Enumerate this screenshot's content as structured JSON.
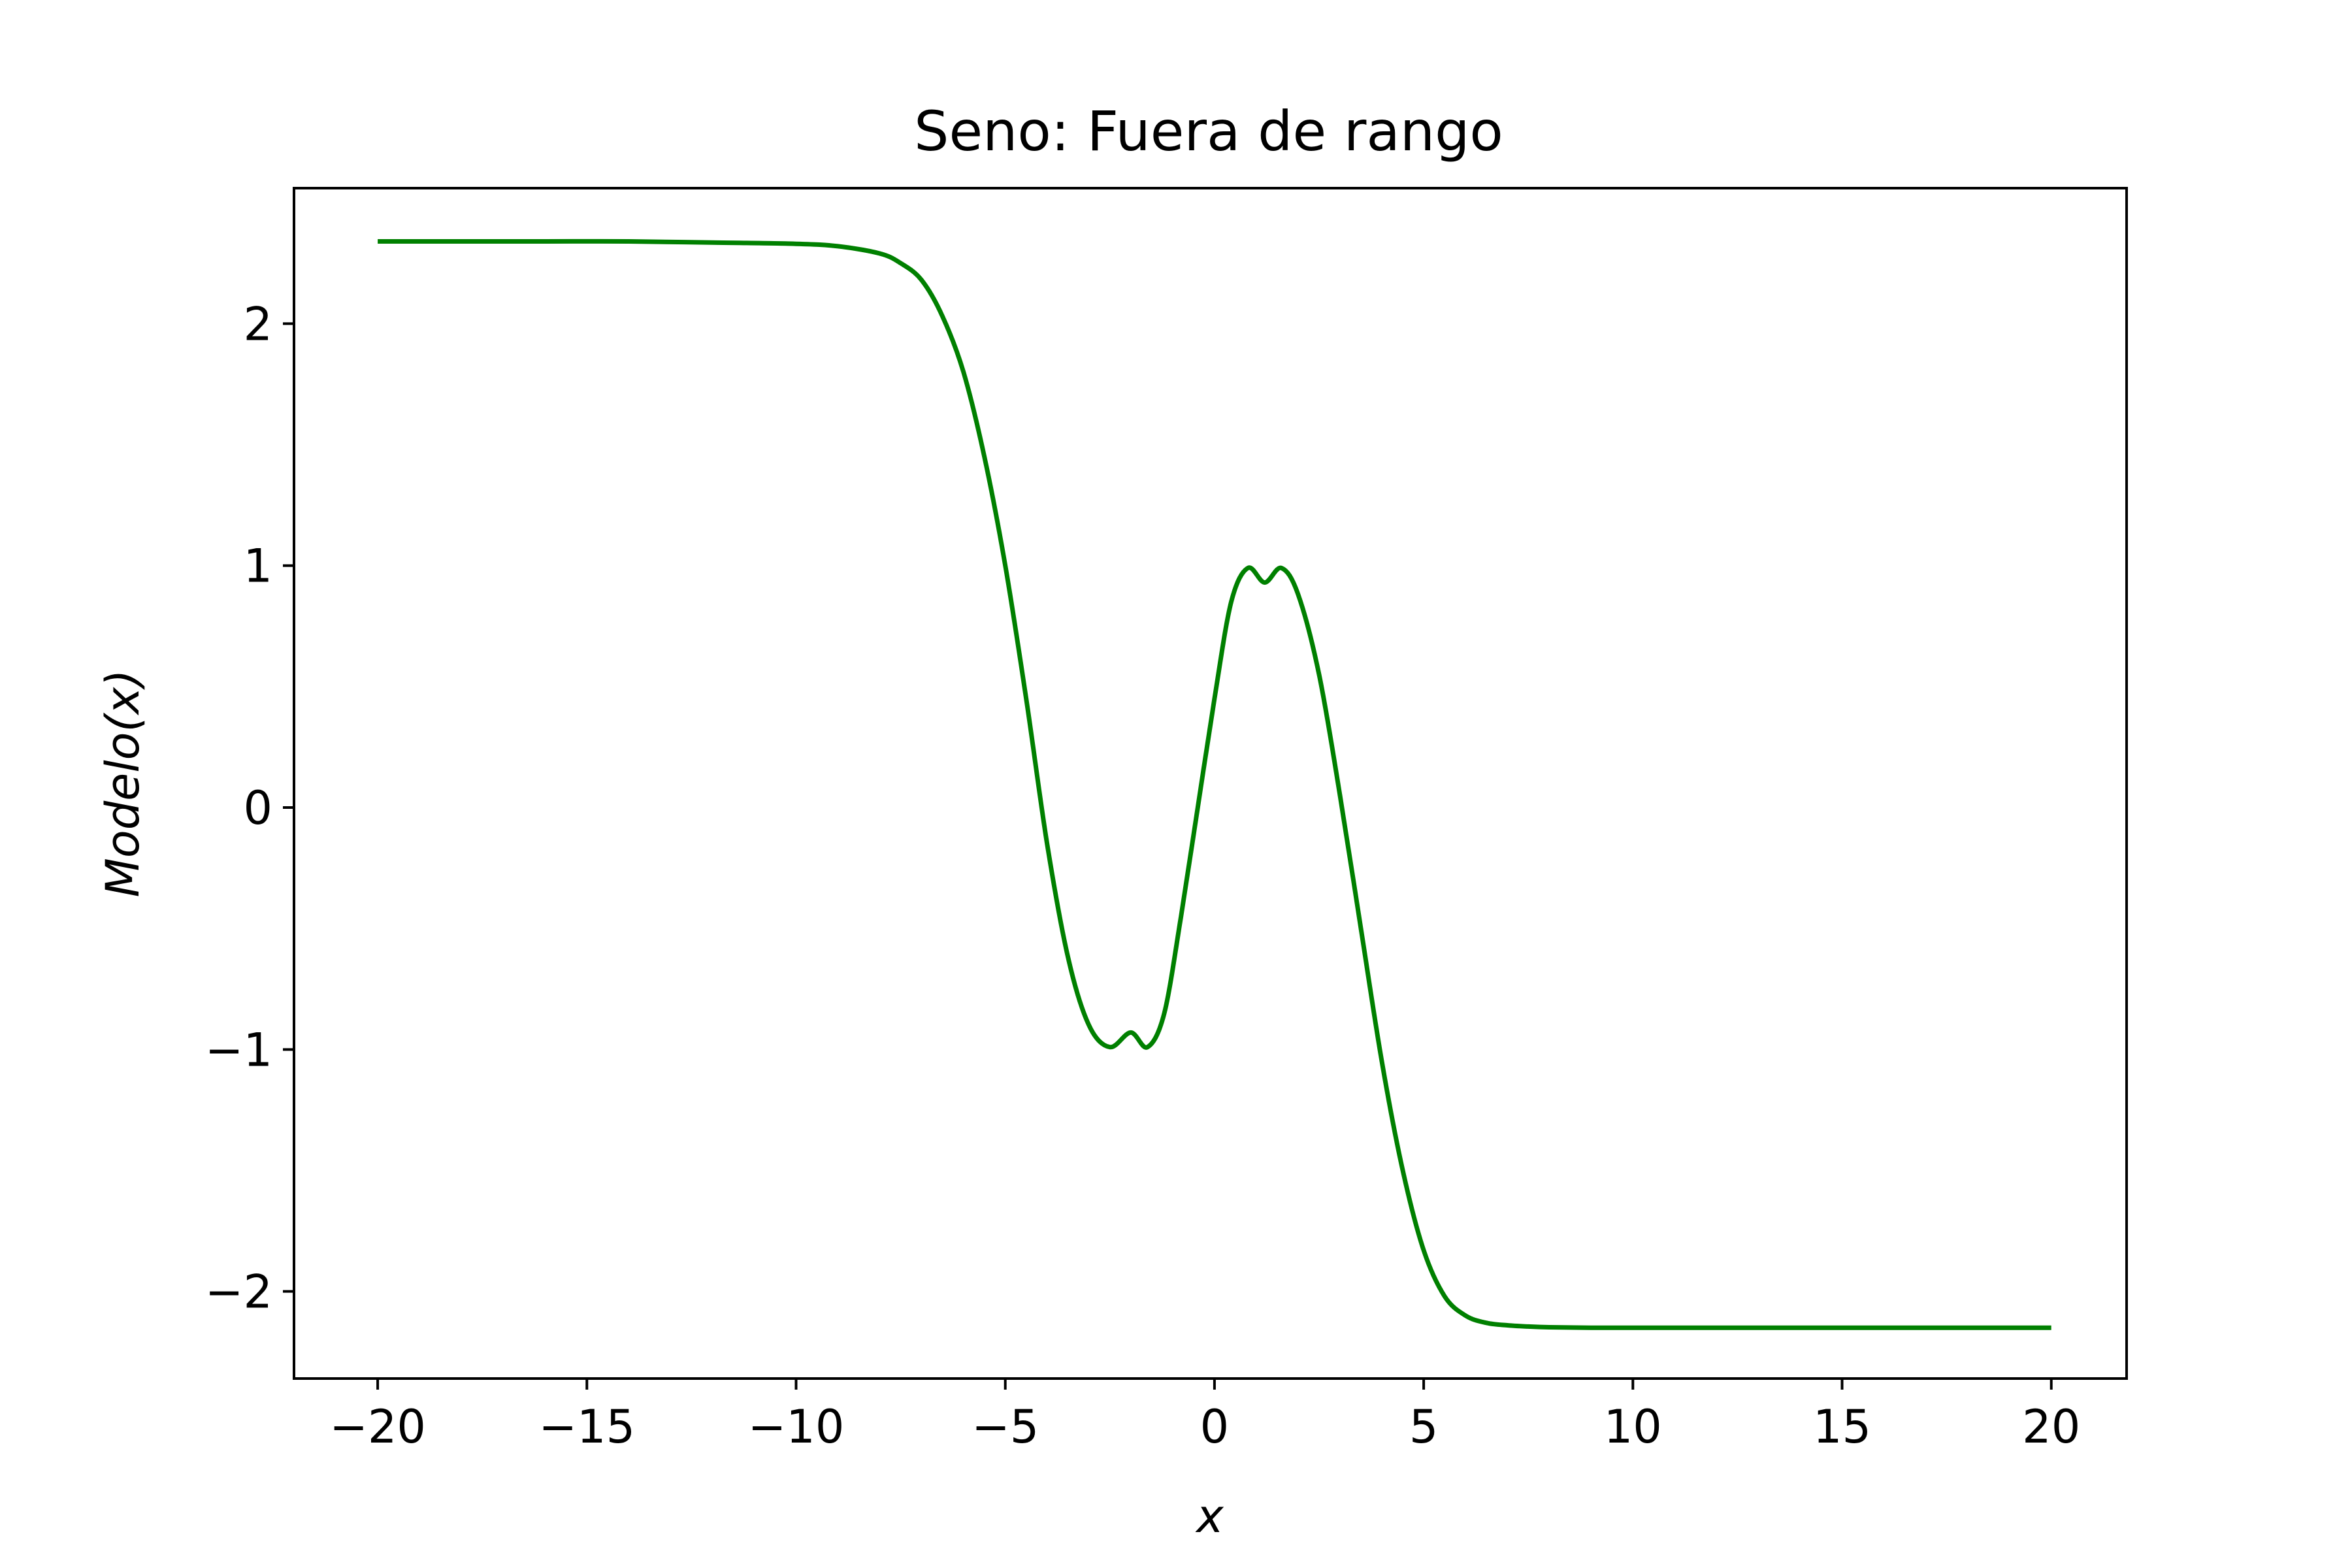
{
  "chart_data": {
    "type": "line",
    "title": "Seno: Fuera de rango",
    "xlabel": "x",
    "ylabel": "Modelo(x)",
    "xlim": [
      -22,
      21.8
    ],
    "ylim": [
      -2.36,
      2.56
    ],
    "grid": false,
    "legend": "none",
    "xticks": [
      -20,
      -15,
      -10,
      -5,
      0,
      5,
      10,
      15,
      20
    ],
    "xtick_labels": [
      "−20",
      "−15",
      "−10",
      "−5",
      "0",
      "5",
      "10",
      "15",
      "20"
    ],
    "yticks": [
      -2,
      -1,
      0,
      1,
      2
    ],
    "ytick_labels": [
      "−2",
      "−1",
      "0",
      "1",
      "2"
    ],
    "series": [
      {
        "name": "Modelo(x)",
        "color": "#008000",
        "x": [
          -20,
          -18,
          -16,
          -14,
          -12,
          -10,
          -9,
          -8,
          -7.5,
          -7,
          -6.5,
          -6,
          -5.5,
          -5,
          -4.5,
          -4,
          -3.5,
          -3,
          -2.5,
          -2,
          -1.6,
          -1.2,
          -0.8,
          -0.4,
          0,
          0.4,
          0.8,
          1.2,
          1.6,
          2,
          2.5,
          3,
          3.5,
          4,
          4.5,
          5,
          5.5,
          6,
          6.5,
          7,
          7.5,
          8,
          9,
          10,
          12,
          14,
          16,
          18,
          20
        ],
        "values": [
          2.34,
          2.34,
          2.34,
          2.34,
          2.335,
          2.33,
          2.32,
          2.29,
          2.25,
          2.18,
          2.03,
          1.8,
          1.45,
          1.0,
          0.45,
          -0.15,
          -0.62,
          -0.9,
          -0.99,
          -0.93,
          -0.99,
          -0.85,
          -0.45,
          0.0,
          0.45,
          0.85,
          0.99,
          0.93,
          0.99,
          0.88,
          0.55,
          0.05,
          -0.5,
          -1.05,
          -1.5,
          -1.83,
          -2.02,
          -2.1,
          -2.13,
          -2.14,
          -2.145,
          -2.148,
          -2.15,
          -2.15,
          -2.15,
          -2.15,
          -2.15,
          -2.15,
          -2.15
        ]
      }
    ]
  }
}
